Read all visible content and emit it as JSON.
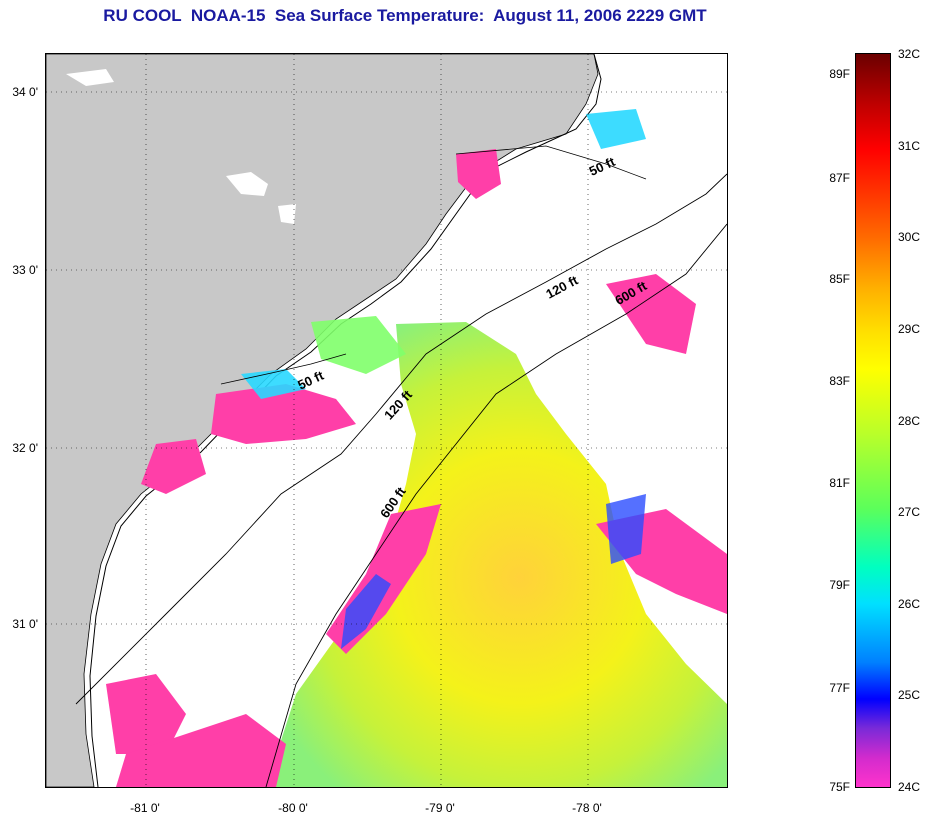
{
  "title": "RU COOL  NOAA-15  Sea Surface Temperature:  August 11, 2006 2229 GMT",
  "map": {
    "lat_ticks": [
      "34 0'",
      "33 0'",
      "32 0'",
      "31 0'"
    ],
    "lon_ticks": [
      "-81 0'",
      "-80 0'",
      "-79 0'",
      "-78 0'"
    ],
    "contour_labels": {
      "ft50_north": "50 ft",
      "ft50_south": "50 ft",
      "ft120_north": "120 ft",
      "ft120_south": "120 ft",
      "ft600_north": "600 ft",
      "ft600_south": "600 ft"
    },
    "colors": {
      "land": "#c8c8c8",
      "ocean_cloud": "#ffffff",
      "frame": "#000000"
    }
  },
  "colorbar": {
    "fahrenheit": [
      "89F",
      "87F",
      "85F",
      "83F",
      "81F",
      "79F",
      "77F",
      "75F"
    ],
    "celsius": [
      "32C",
      "31C",
      "30C",
      "29C",
      "28C",
      "27C",
      "26C",
      "25C",
      "24C"
    ],
    "colors_top_to_bottom": [
      "#6b0000",
      "#ff0000",
      "#ff6a00",
      "#ffe000",
      "#ffff00",
      "#5cff5a",
      "#00e0ff",
      "#0000ff",
      "#ff33cc"
    ]
  }
}
